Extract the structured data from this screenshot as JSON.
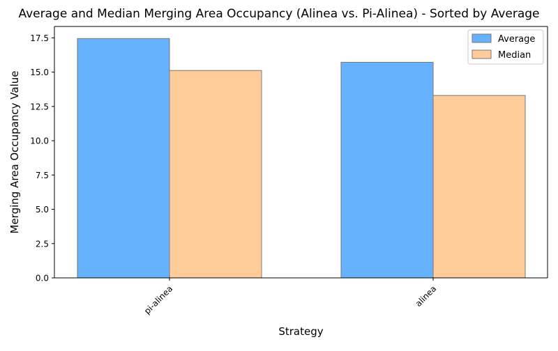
{
  "chart_data": {
    "type": "bar",
    "title": "Average and Median Merging Area Occupancy (Alinea vs. Pi-Alinea) - Sorted by Average",
    "xlabel": "Strategy",
    "ylabel": "Merging Area Occupancy Value",
    "categories": [
      "pi-alinea",
      "alinea"
    ],
    "series": [
      {
        "name": "Average",
        "color": "#66b2ff",
        "values": [
          17.45,
          15.72
        ]
      },
      {
        "name": "Median",
        "color": "#ffcc99",
        "values": [
          15.12,
          13.3
        ]
      }
    ],
    "ylim": [
      0,
      18.33
    ],
    "yticks": [
      "0.0",
      "2.5",
      "5.0",
      "7.5",
      "10.0",
      "12.5",
      "15.0",
      "17.5"
    ],
    "grid": false,
    "legend_position": "top-right",
    "bar_edge_color": "#777777"
  }
}
